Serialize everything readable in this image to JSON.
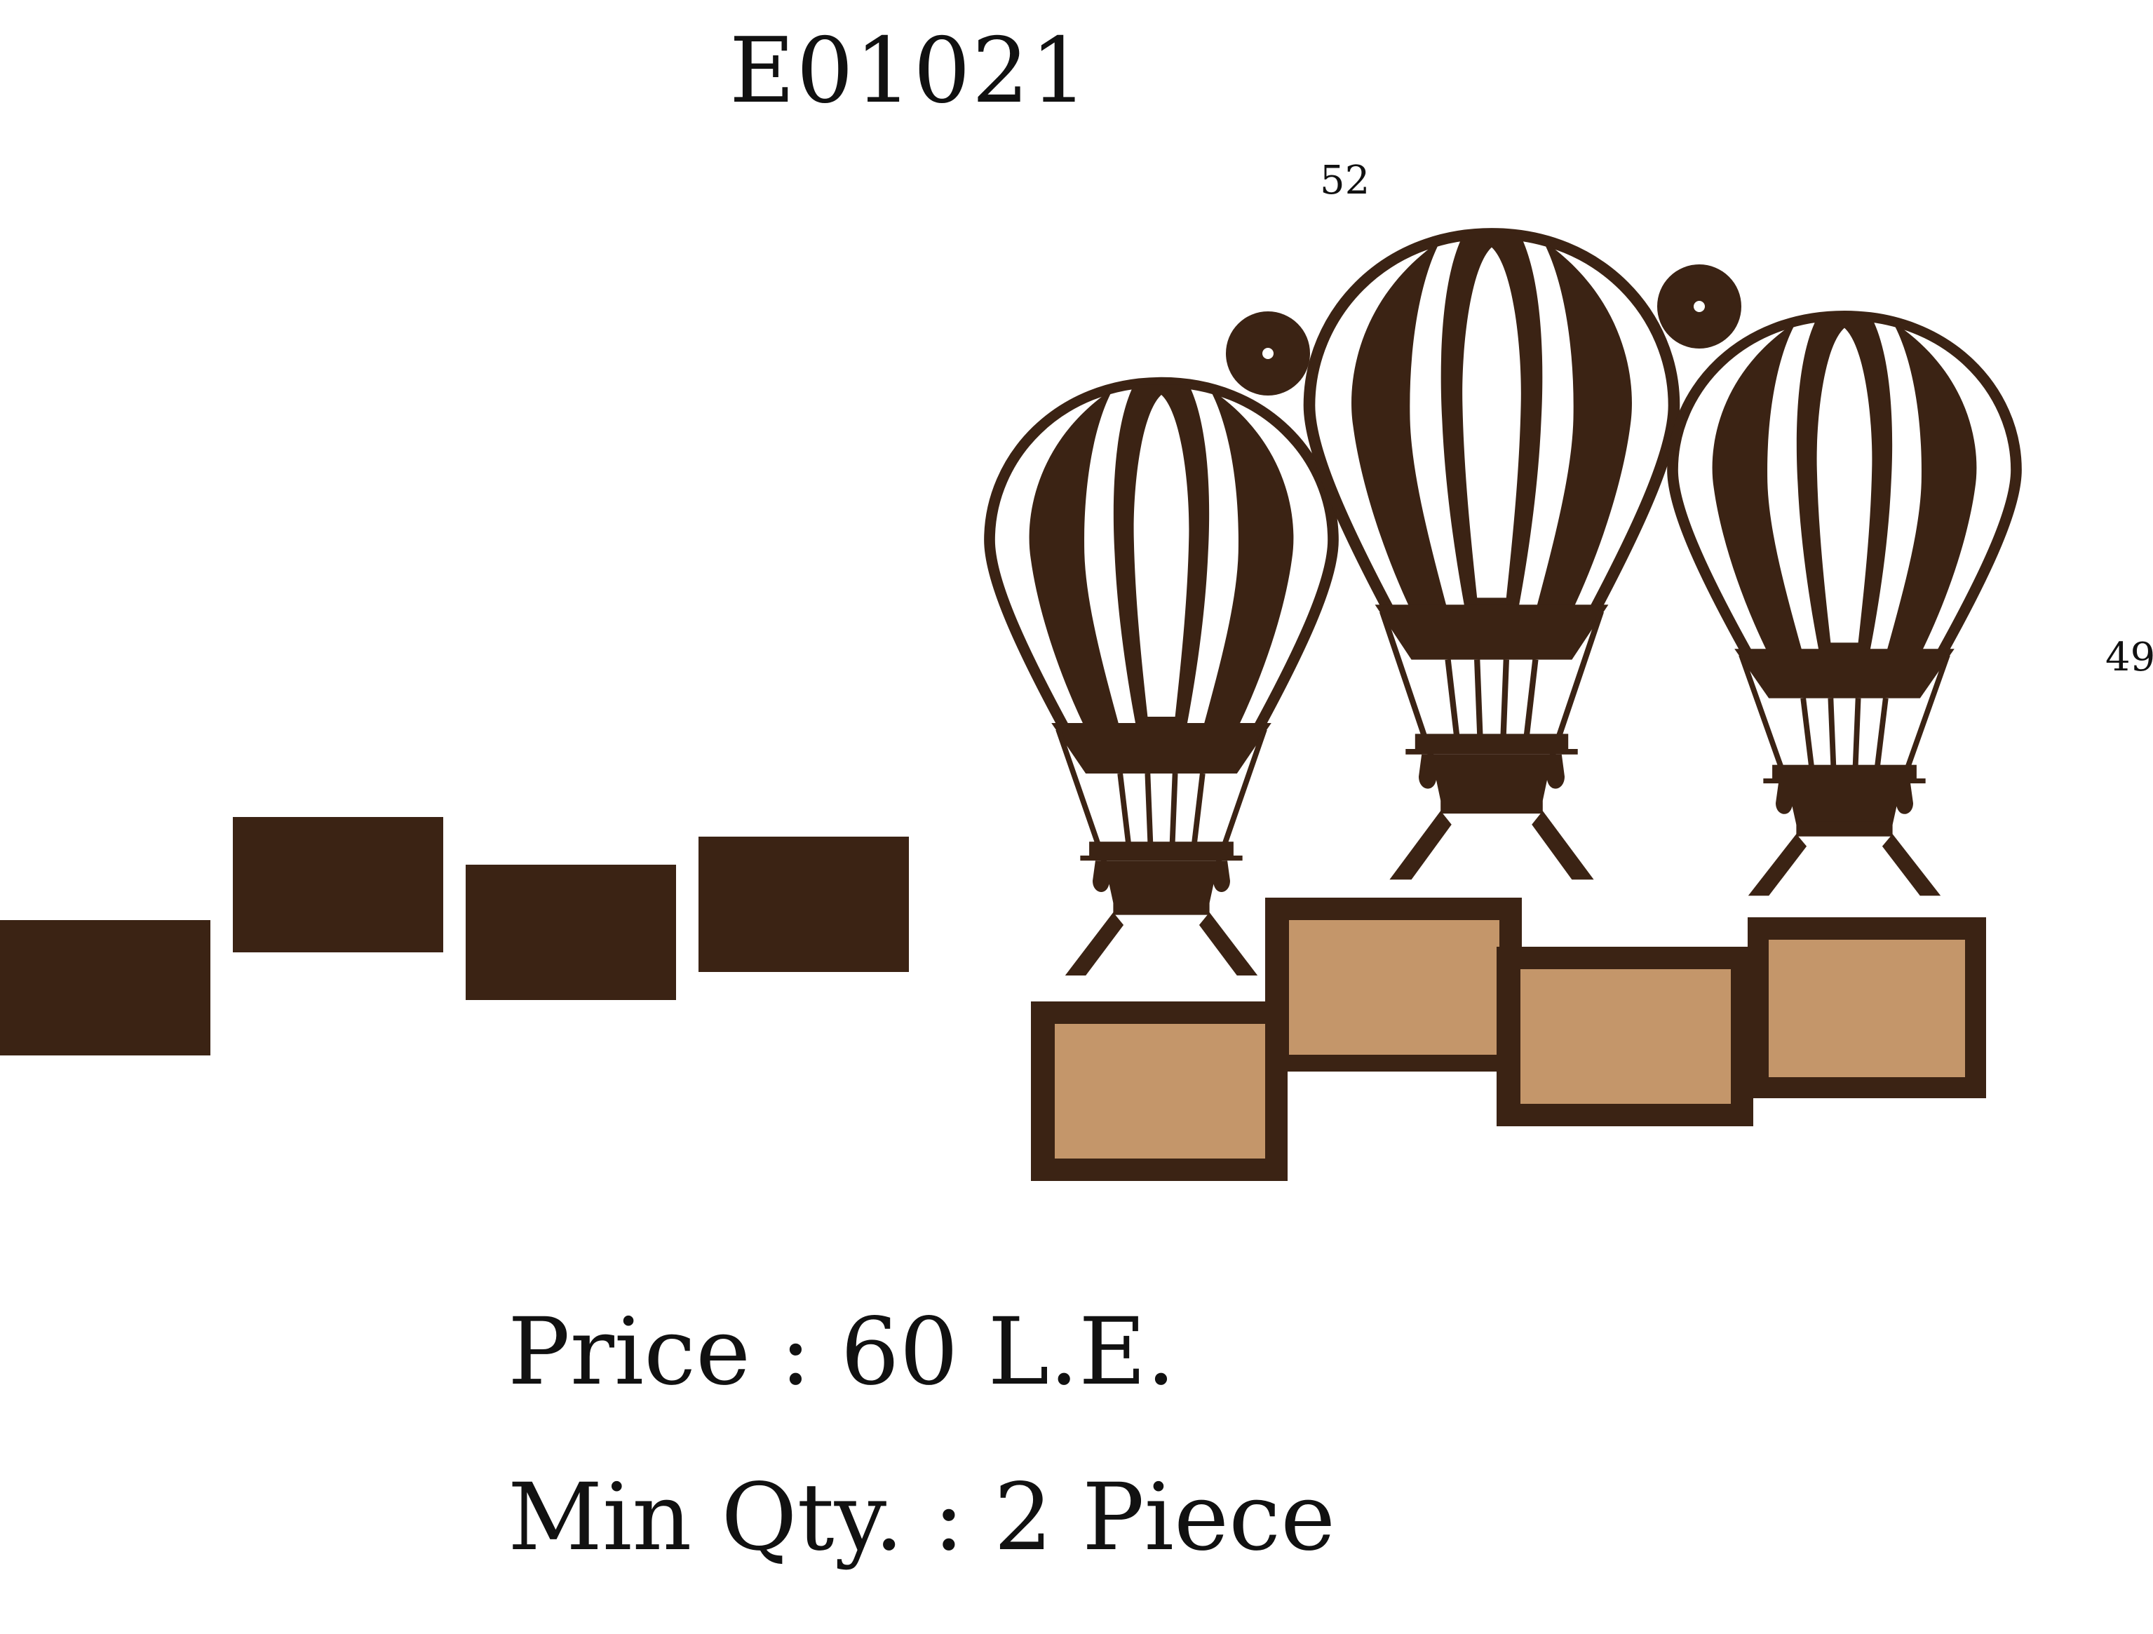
{
  "product": {
    "code": "E01021"
  },
  "dimensions": {
    "width": "52",
    "height": "49"
  },
  "pricing": {
    "price_line": "Price : 60 L.E.",
    "min_qty_line": "Min Qty. : 2 Piece"
  },
  "colors": {
    "frame_brown": "#3b2314",
    "photo_tan": "#c4966a",
    "background": "#ffffff",
    "text": "#111111"
  }
}
